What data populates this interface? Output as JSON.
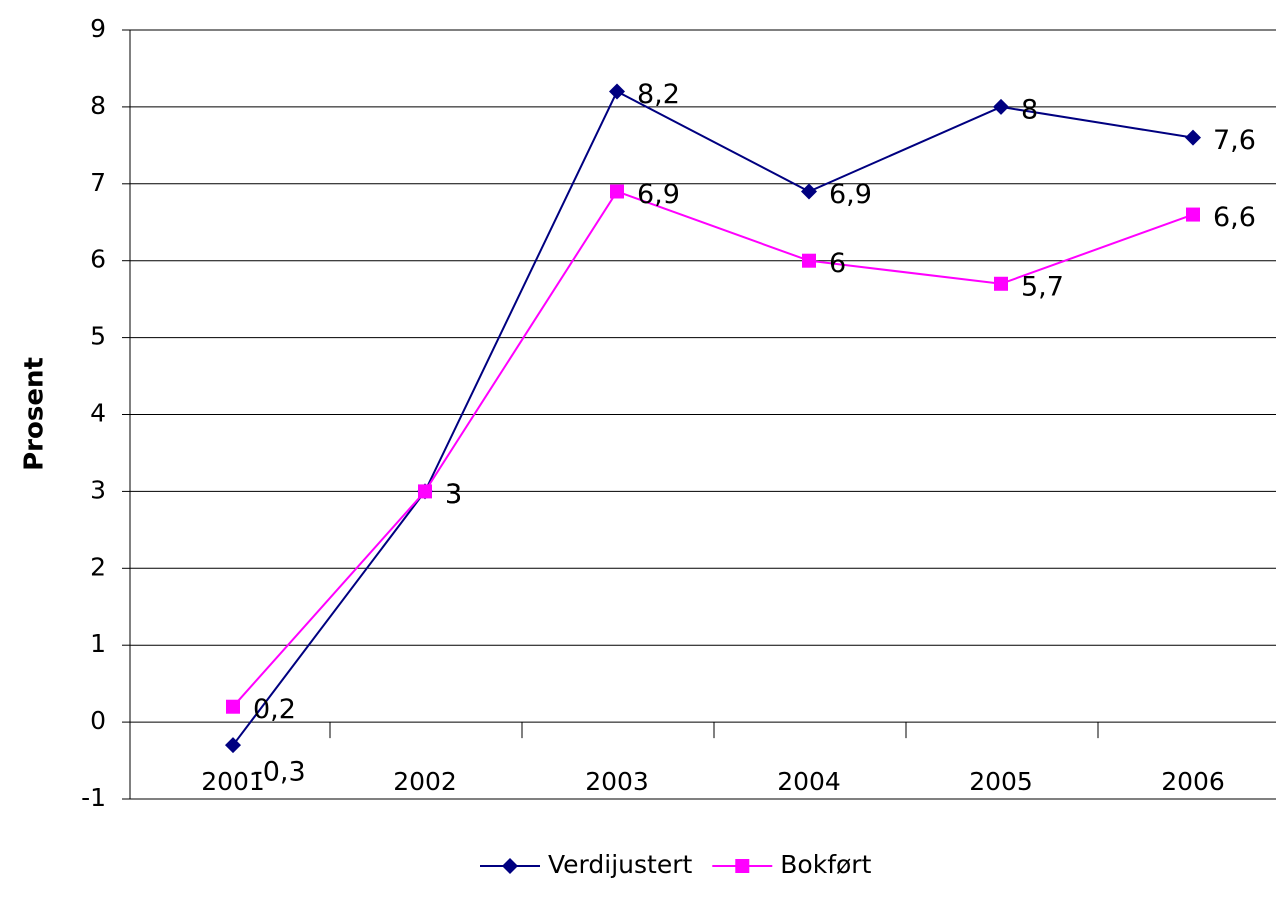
{
  "chart_data": {
    "type": "line",
    "y_label": "Prosent",
    "categories": [
      "2001",
      "2002",
      "2003",
      "2004",
      "2005",
      "2006"
    ],
    "series": [
      {
        "name": "Verdijustert",
        "color": "#000080",
        "marker": "diamond",
        "values": [
          -0.3,
          3,
          8.2,
          6.9,
          8,
          7.6
        ],
        "value_labels": [
          "-0,3",
          "3",
          "8,2",
          "6,9",
          "8",
          "7,6"
        ]
      },
      {
        "name": "Bokført",
        "color": "#ff00ff",
        "marker": "square",
        "values": [
          0.2,
          3,
          6.9,
          6,
          5.7,
          6.6
        ],
        "value_labels": [
          "0,2",
          "3",
          "6,9",
          "6",
          "5,7",
          "6,6"
        ]
      }
    ],
    "ylim": [
      -1,
      9
    ],
    "yticks": [
      -1,
      0,
      1,
      2,
      3,
      4,
      5,
      6,
      7,
      8,
      9
    ],
    "grid": true,
    "legend": "bottom"
  }
}
